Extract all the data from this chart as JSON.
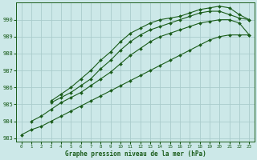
{
  "xlabel": "Graphe pression niveau de la mer (hPa)",
  "bg_color": "#cce8e8",
  "grid_color": "#aacccc",
  "line_color": "#1a5c1a",
  "xlim": [
    -0.5,
    23.5
  ],
  "ylim": [
    982.8,
    991.0
  ],
  "yticks": [
    983,
    984,
    985,
    986,
    987,
    988,
    989,
    990
  ],
  "xticks": [
    0,
    1,
    2,
    3,
    4,
    5,
    6,
    7,
    8,
    9,
    10,
    11,
    12,
    13,
    14,
    15,
    16,
    17,
    18,
    19,
    20,
    21,
    22,
    23
  ],
  "lines": [
    {
      "x": [
        0,
        1,
        2,
        3,
        4,
        5,
        6,
        7,
        8,
        9,
        10,
        11,
        12,
        13,
        14,
        15,
        16,
        17,
        18,
        19,
        20,
        21,
        22,
        23
      ],
      "y": [
        983.2,
        983.5,
        983.7,
        984.0,
        984.3,
        984.6,
        984.9,
        985.2,
        985.5,
        985.8,
        986.1,
        986.4,
        986.7,
        987.0,
        987.3,
        987.6,
        987.9,
        988.2,
        988.5,
        988.8,
        989.0,
        989.1,
        989.1,
        989.1
      ]
    },
    {
      "x": [
        1,
        2,
        3,
        4,
        5,
        6,
        7,
        8,
        9,
        10,
        11,
        12,
        13,
        14,
        15,
        16,
        17,
        18,
        19,
        20,
        21,
        22,
        23
      ],
      "y": [
        984.0,
        984.3,
        984.7,
        985.1,
        985.4,
        985.7,
        986.1,
        986.5,
        986.9,
        987.4,
        987.9,
        988.3,
        988.7,
        989.0,
        989.2,
        989.4,
        989.6,
        989.8,
        989.9,
        990.0,
        990.0,
        989.8,
        989.1
      ]
    },
    {
      "x": [
        3,
        4,
        5,
        6,
        7,
        8,
        9,
        10,
        11,
        12,
        13,
        14,
        15,
        16,
        17,
        18,
        19,
        20,
        21,
        22,
        23
      ],
      "y": [
        985.1,
        985.4,
        985.7,
        986.1,
        986.5,
        987.1,
        987.6,
        988.2,
        988.7,
        989.1,
        989.4,
        989.6,
        989.8,
        990.0,
        990.2,
        990.4,
        990.5,
        990.5,
        990.3,
        990.1,
        990.0
      ]
    },
    {
      "x": [
        3,
        4,
        5,
        6,
        7,
        8,
        9,
        10,
        11,
        12,
        13,
        14,
        15,
        16,
        17,
        18,
        19,
        20,
        21,
        22,
        23
      ],
      "y": [
        985.2,
        985.6,
        986.0,
        986.5,
        987.0,
        987.6,
        988.1,
        988.7,
        989.2,
        989.5,
        989.8,
        990.0,
        990.1,
        990.2,
        990.4,
        990.6,
        990.7,
        990.8,
        990.7,
        990.3,
        990.0
      ]
    }
  ]
}
